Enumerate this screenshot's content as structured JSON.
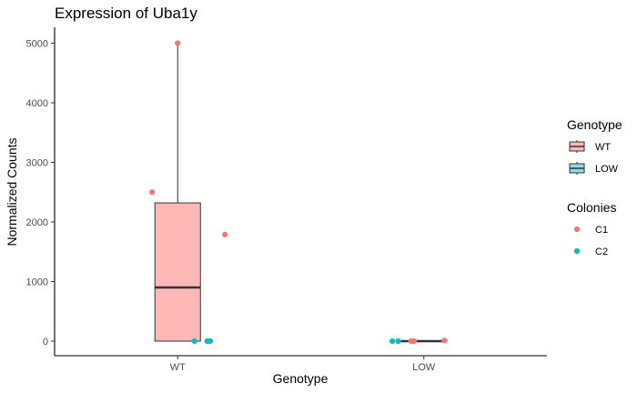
{
  "chart_data": {
    "type": "box",
    "title": "Expression of Uba1y",
    "xlabel": "Genotype",
    "ylabel": "Normalized Counts",
    "categories": [
      "WT",
      "LOW"
    ],
    "ylim": [
      -250,
      5250
    ],
    "yticks": [
      0,
      1000,
      2000,
      3000,
      4000,
      5000
    ],
    "grid": false,
    "boxes": [
      {
        "category": "WT",
        "min": 0,
        "q1": 0,
        "median": 900,
        "q3": 2320,
        "max": 5000,
        "fill": "#ffb8b5"
      },
      {
        "category": "LOW",
        "min": 0,
        "q1": 0,
        "median": 0,
        "q3": 5,
        "max": 10,
        "fill": "#8ddbe0"
      }
    ],
    "points": [
      {
        "category": "WT",
        "colony": "C1",
        "jitter": 0.0,
        "y": 5000
      },
      {
        "category": "WT",
        "colony": "C1",
        "jitter": -0.26,
        "y": 2500
      },
      {
        "category": "WT",
        "colony": "C1",
        "jitter": 0.48,
        "y": 1790
      },
      {
        "category": "WT",
        "colony": "C2",
        "jitter": 0.17,
        "y": 0
      },
      {
        "category": "WT",
        "colony": "C2",
        "jitter": 0.3,
        "y": 0
      },
      {
        "category": "WT",
        "colony": "C2",
        "jitter": 0.33,
        "y": 0
      },
      {
        "category": "LOW",
        "colony": "C1",
        "jitter": -0.13,
        "y": 0
      },
      {
        "category": "LOW",
        "colony": "C1",
        "jitter": -0.1,
        "y": 0
      },
      {
        "category": "LOW",
        "colony": "C1",
        "jitter": 0.21,
        "y": 10
      },
      {
        "category": "LOW",
        "colony": "C2",
        "jitter": -0.32,
        "y": 0
      },
      {
        "category": "LOW",
        "colony": "C2",
        "jitter": -0.26,
        "y": 0
      }
    ],
    "legends": [
      {
        "title": "Genotype",
        "kind": "box",
        "items": [
          {
            "label": "WT",
            "fill": "#ffb8b5"
          },
          {
            "label": "LOW",
            "fill": "#8ddbe0"
          }
        ]
      },
      {
        "title": "Colonies",
        "kind": "point",
        "items": [
          {
            "label": "C1",
            "color": "#f8766d"
          },
          {
            "label": "C2",
            "color": "#00bfc4"
          }
        ]
      }
    ],
    "legend_position": "right"
  }
}
